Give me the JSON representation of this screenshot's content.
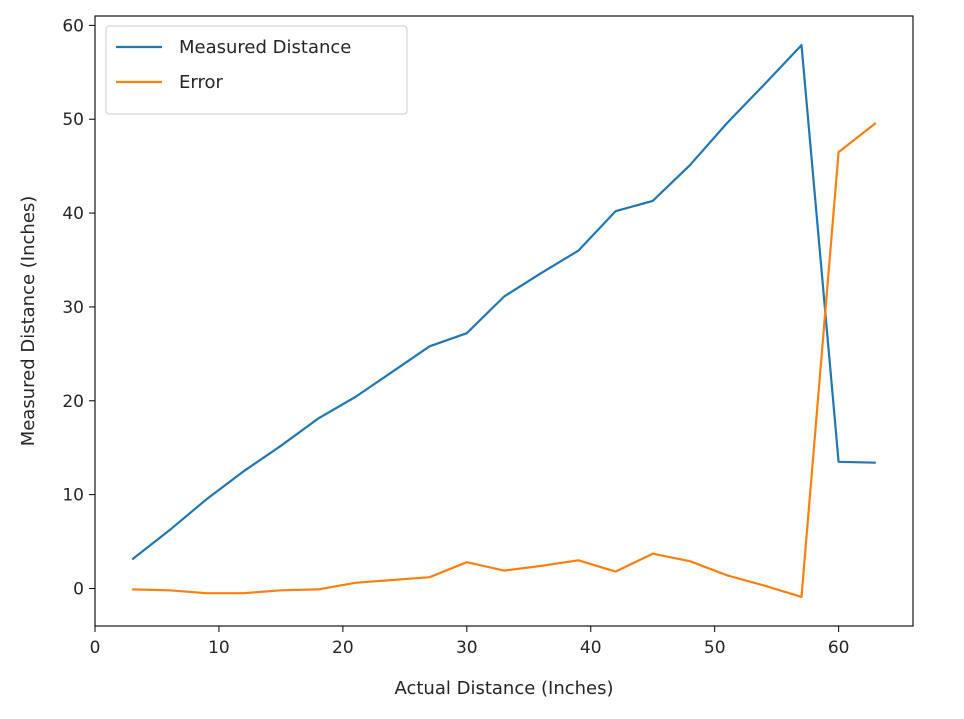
{
  "chart_data": {
    "type": "line",
    "title": "",
    "xlabel": "Actual Distance (Inches)",
    "ylabel": "Measured Distance (Inches)",
    "xlim": [
      0,
      66
    ],
    "ylim": [
      -4,
      61
    ],
    "xticks": [
      0,
      10,
      20,
      30,
      40,
      50,
      60
    ],
    "yticks": [
      0,
      10,
      20,
      30,
      40,
      50,
      60
    ],
    "grid": false,
    "legend_position": "top-left",
    "x": [
      3,
      6,
      9,
      12,
      15,
      18,
      21,
      24,
      27,
      30,
      33,
      36,
      39,
      42,
      45,
      48,
      51,
      54,
      57,
      60,
      63
    ],
    "series": [
      {
        "name": "Measured Distance",
        "color": "#1f77b4",
        "values": [
          3.1,
          6.2,
          9.5,
          12.5,
          15.2,
          18.1,
          20.4,
          23.1,
          25.8,
          27.2,
          31.1,
          33.6,
          36.0,
          40.2,
          41.3,
          45.1,
          49.6,
          53.7,
          57.9,
          13.5,
          13.4
        ]
      },
      {
        "name": "Error",
        "color": "#ff7f0e",
        "values": [
          -0.1,
          -0.2,
          -0.5,
          -0.5,
          -0.2,
          -0.1,
          0.6,
          0.9,
          1.2,
          2.8,
          1.9,
          2.4,
          3.0,
          1.8,
          3.7,
          2.9,
          1.4,
          0.3,
          -0.9,
          46.5,
          49.6
        ]
      }
    ]
  }
}
